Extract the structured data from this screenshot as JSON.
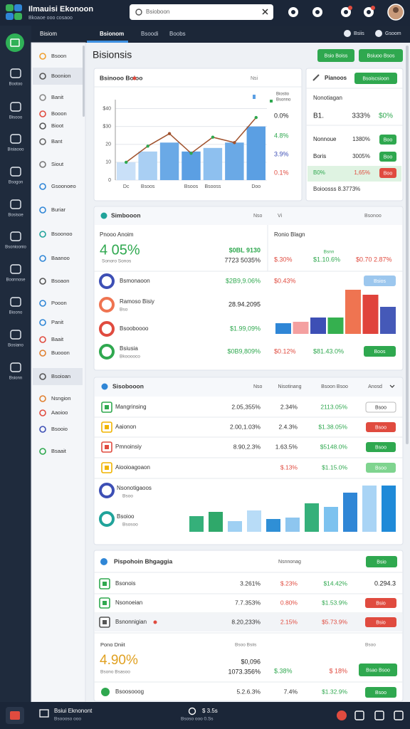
{
  "header": {
    "title": "Ilmauisi Ekonoon",
    "subtitle": "Bkoaoe ooo cosaoo",
    "search": "Bsioboon"
  },
  "rail": [
    "Bootoo",
    "Bisooo",
    "Bisiaooo",
    "Bsogon",
    "Bosisoe",
    "Bsonioonio",
    "Boonnose",
    "Bioono",
    "Bosiano",
    "Bsionn"
  ],
  "sidebar": {
    "title": "Bisiom",
    "items": [
      "Bsoon",
      "Boonion",
      "Banit",
      "Booon",
      "Bioot",
      "Bant",
      "Siout",
      "Gsoonoeo",
      "Buriar",
      "Bsoonoo",
      "Baanoo",
      "Bsoaon",
      "Pooon",
      "Panit",
      "Baait",
      "Buooon",
      "Bsoioan",
      "Nsngion",
      "Aaoioo",
      "Bsooio",
      "Bsaait"
    ]
  },
  "tabs": [
    "Bsionom",
    "Bsoodi",
    "Boobs"
  ],
  "tab_actions": [
    "Bsiis",
    "Gsoom"
  ],
  "page": {
    "title": "Bisionsis",
    "buttons": [
      "Bsio Boiss",
      "Bsiuoo Bsos"
    ]
  },
  "chart_card": {
    "title": "Bsinooo Boioo",
    "menu": "Nsi",
    "legend": [
      "Biostio",
      "Bsonno"
    ],
    "ylim": [
      0,
      45
    ],
    "yticks": [
      0,
      10,
      20,
      {
        "value": 30,
        "label": "$30"
      },
      {
        "value": 40,
        "label": "$40"
      }
    ],
    "categories": [
      "Dc",
      "Bsoos",
      null,
      "Bsoos",
      "Bsooss",
      null,
      "Doo"
    ],
    "bars": {
      "values": [
        10,
        16,
        21,
        16,
        18,
        21,
        30
      ],
      "colors": [
        "#c9e0f8",
        "#a9cff3",
        "#6aa9e6",
        "#5b9fe3",
        "#8ec0ef",
        "#6aa9e6",
        "#5b9fe3"
      ]
    },
    "line": {
      "values": [
        10,
        19,
        26,
        15,
        24,
        21,
        35
      ],
      "color": "#a0522d",
      "point_color": "#2fa84f"
    },
    "stats": [
      "0.0%",
      "4.8%",
      "3.9%",
      "0.1%"
    ]
  },
  "table_card": {
    "title": "Pianoos",
    "button": "Bsoiscsioon",
    "header": "Nonotiagan",
    "rows": [
      {
        "a": "B1.",
        "b": "333%",
        "c": "$0%"
      },
      {
        "a": "Nonnoue",
        "b": "1380%",
        "button": {
          "label": "Boo",
          "color": "#2fa84f"
        }
      },
      {
        "a": "Boris",
        "b": "3005%",
        "button": {
          "label": "Boo",
          "color": "#2fa84f"
        }
      },
      {
        "a": "B0%",
        "b": "1,65%",
        "button": {
          "label": "Boo",
          "color": "#e04b3f"
        }
      }
    ],
    "footer": "Boioosss 8.3773%"
  },
  "summary_card": {
    "title": "Simbooon",
    "cols": [
      "Nso",
      "Vi",
      "Bsonoo"
    ],
    "left": {
      "label": "Pnooo Anoim",
      "big": "4 05%",
      "sub": "Sonoro Sonos",
      "v1": "$0BL 9130",
      "v2": "7723 5035%"
    },
    "right": {
      "label": "Ronio Blagn",
      "mini": "Bsnn",
      "p1": "$.30%",
      "p2": "$1.10.6%",
      "p3": "$0.70 2.87%"
    },
    "rows": [
      {
        "name": "Bsmonaoon",
        "value": "$2B9,9.06%",
        "pct": "$0.43%",
        "button": {
          "label": "Bsios",
          "color": "#9cc7ee"
        }
      },
      {
        "name": "Ramoso Bisiy",
        "sub": "Bso",
        "value": "28.94.2095"
      },
      {
        "name": "Bsooboooo",
        "value": "$1.99,09%"
      },
      {
        "name": "Bsiusia",
        "sub": "Bkooooco",
        "value": "$0B9,809%",
        "pct": "$0.12%",
        "pct2": "$81.43.0%",
        "button": {
          "label": "Boos",
          "color": "#2fa84f"
        }
      }
    ],
    "chart": {
      "ylim": [
        0,
        70
      ],
      "values": [
        15,
        17,
        23,
        23,
        62,
        55,
        38
      ],
      "colors": [
        "#2f86d6",
        "#f4a0a0",
        "#3d4fb5",
        "#35b04f",
        "#ef7451",
        "#e0433b",
        "#4559b8"
      ]
    }
  },
  "list_card": {
    "title": "Sisobooon",
    "cols": [
      "Nso",
      "Nisotinang",
      "Bsoon Bsoo",
      "Anosd"
    ],
    "rows": [
      {
        "name": "Mangrinsing",
        "v1": "2.05,355%",
        "v2": "2.34%",
        "v3": "2113.05%",
        "button": {
          "label": "Bsoo",
          "color": "#ffffff"
        }
      },
      {
        "name": "Aaionon",
        "v1": "2.00,1.03%",
        "v2": "2.4.3%",
        "v3": "$1.38.05%",
        "button": {
          "label": "Bsoo",
          "color": "#e04b3f"
        }
      },
      {
        "name": "Pmnoinsiy",
        "v1": "8.90,2.3%",
        "v2": "1.63.5%",
        "v3": "$5148.0%",
        "button": {
          "label": "Bsoo",
          "color": "#2fa84f"
        }
      },
      {
        "name": "Aiooioagoaon",
        "v2": "$.13%",
        "v3": "$1.15.0%",
        "button": {
          "label": "Bsoo",
          "color": "#7fd48f"
        }
      }
    ],
    "legend": [
      {
        "name": "Nsonotigaoos",
        "sub": "Bsoo"
      },
      {
        "name": "Bsoioo",
        "sub": "Bsosoo"
      }
    ],
    "chart": {
      "ylim": [
        0,
        70
      ],
      "values": [
        22,
        28,
        15,
        30,
        18,
        20,
        40,
        35,
        55,
        65,
        65
      ],
      "colors": [
        "#35b07a",
        "#2fa86a",
        "#9fd0f3",
        "#b8dcf7",
        "#2f8fd6",
        "#8ec6ef",
        "#35b07a",
        "#7cc2ef",
        "#2f86d6",
        "#a9d4f5",
        "#1f8ad8"
      ]
    }
  },
  "bottom_card": {
    "title": "Pispohoin Bhgaggia",
    "col": "Nsnnonag",
    "button": "Bsio",
    "rows": [
      {
        "name": "Bsonois",
        "v1": "3.261%",
        "v2": "$.23%",
        "v3": "$14.42%",
        "v4": "0.294.3"
      },
      {
        "name": "Nsonoeian",
        "v1": "7.7.353%",
        "v2": "0.80%",
        "v3": "$1.53.9%",
        "button": {
          "label": "Bsio",
          "color": "#e04b3f"
        }
      },
      {
        "name": "Bsnonnigian",
        "v1": "8.20,233%",
        "v2": "2.15%",
        "v3": "$5.73.9%",
        "button": {
          "label": "Bsio",
          "color": "#e04b3f"
        }
      }
    ],
    "block": {
      "label": "Pono Dniit",
      "big": "4.90%",
      "sub": "Bsono Bsasoo",
      "mid": "Bsoo Bsiis",
      "v1": "$0,096",
      "v2": "1073.356%",
      "v3": "$.38%",
      "v4": "$ 18%",
      "small": "Bsoo",
      "button": "Bsao Bsoo"
    },
    "last": {
      "name": "Bsoosooog",
      "v1": "5.2.6.3%",
      "v2": "7.4%",
      "v3": "$1.32.9%",
      "button": "Bsoo"
    }
  },
  "footer": {
    "app": "Bsiui Eknonont",
    "app_sub": "Bsoooso ooo",
    "center": "$ 3.5s",
    "center_sub": "Bsoso ooo 0.Ss"
  }
}
